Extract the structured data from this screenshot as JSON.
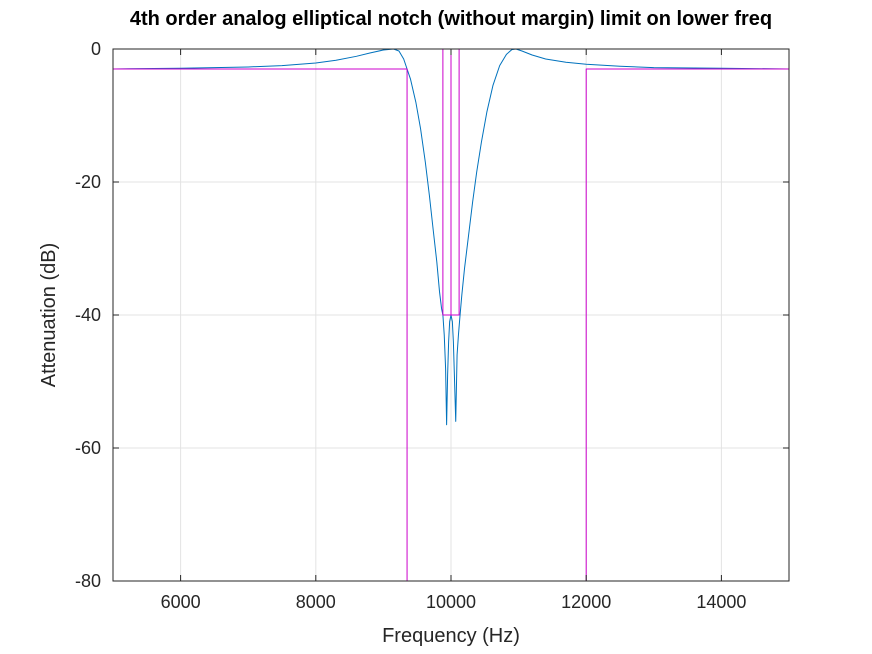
{
  "chart_data": {
    "type": "line",
    "title": "4th order analog elliptical notch (without margin) limit on lower freq",
    "xlabel": "Frequency (Hz)",
    "ylabel": "Attenuation (dB)",
    "xlim": [
      5000,
      15000
    ],
    "ylim": [
      -80,
      0
    ],
    "xticks": [
      6000,
      8000,
      10000,
      12000,
      14000
    ],
    "yticks": [
      0,
      -20,
      -40,
      -60,
      -80
    ],
    "grid": true,
    "legend": "none",
    "series": [
      {
        "color": "#0072bd",
        "x": [
          5000,
          6000,
          7000,
          7500,
          8000,
          8300,
          8600,
          8800,
          9000,
          9150,
          9230,
          9300,
          9400,
          9480,
          9550,
          9620,
          9680,
          9740,
          9790,
          9830,
          9860,
          9880,
          9900,
          9920,
          9935,
          9950,
          9965,
          9980,
          10000,
          10020,
          10035,
          10050,
          10070,
          10090,
          10110,
          10130,
          10160,
          10200,
          10260,
          10320,
          10380,
          10450,
          10530,
          10620,
          10720,
          10820,
          10900,
          10960,
          11050,
          11200,
          11400,
          11700,
          12000,
          12500,
          13000,
          14000,
          15000
        ],
        "y": [
          -3,
          -2.9,
          -2.7,
          -2.5,
          -2.1,
          -1.7,
          -1.1,
          -0.6,
          -0.15,
          0,
          -0.3,
          -1.5,
          -4.5,
          -8,
          -12,
          -17,
          -22,
          -27.5,
          -32,
          -36.5,
          -39,
          -40,
          -43,
          -48,
          -56.5,
          -49,
          -44,
          -41,
          -40,
          -41,
          -44,
          -49,
          -56,
          -46,
          -43,
          -40.5,
          -37,
          -33,
          -28,
          -23,
          -18.5,
          -14,
          -9.5,
          -5.5,
          -2.5,
          -0.8,
          -0.1,
          0,
          -0.3,
          -0.9,
          -1.5,
          -2,
          -2.3,
          -2.6,
          -2.8,
          -2.9,
          -3
        ]
      },
      {
        "color": "#cc00cc",
        "x": [
          5000,
          9350,
          9350,
          12000,
          12000,
          15000
        ],
        "y": [
          -3,
          -3,
          -80,
          -80,
          -3,
          -3
        ]
      },
      {
        "color": "#cc00cc",
        "x": [
          5000,
          9880,
          9880,
          10120,
          10120,
          15000
        ],
        "y": [
          0,
          0,
          -40,
          -40,
          0,
          0
        ]
      },
      {
        "color": "#cc00cc",
        "x": [
          10000,
          10000
        ],
        "y": [
          0,
          -40
        ]
      }
    ]
  }
}
